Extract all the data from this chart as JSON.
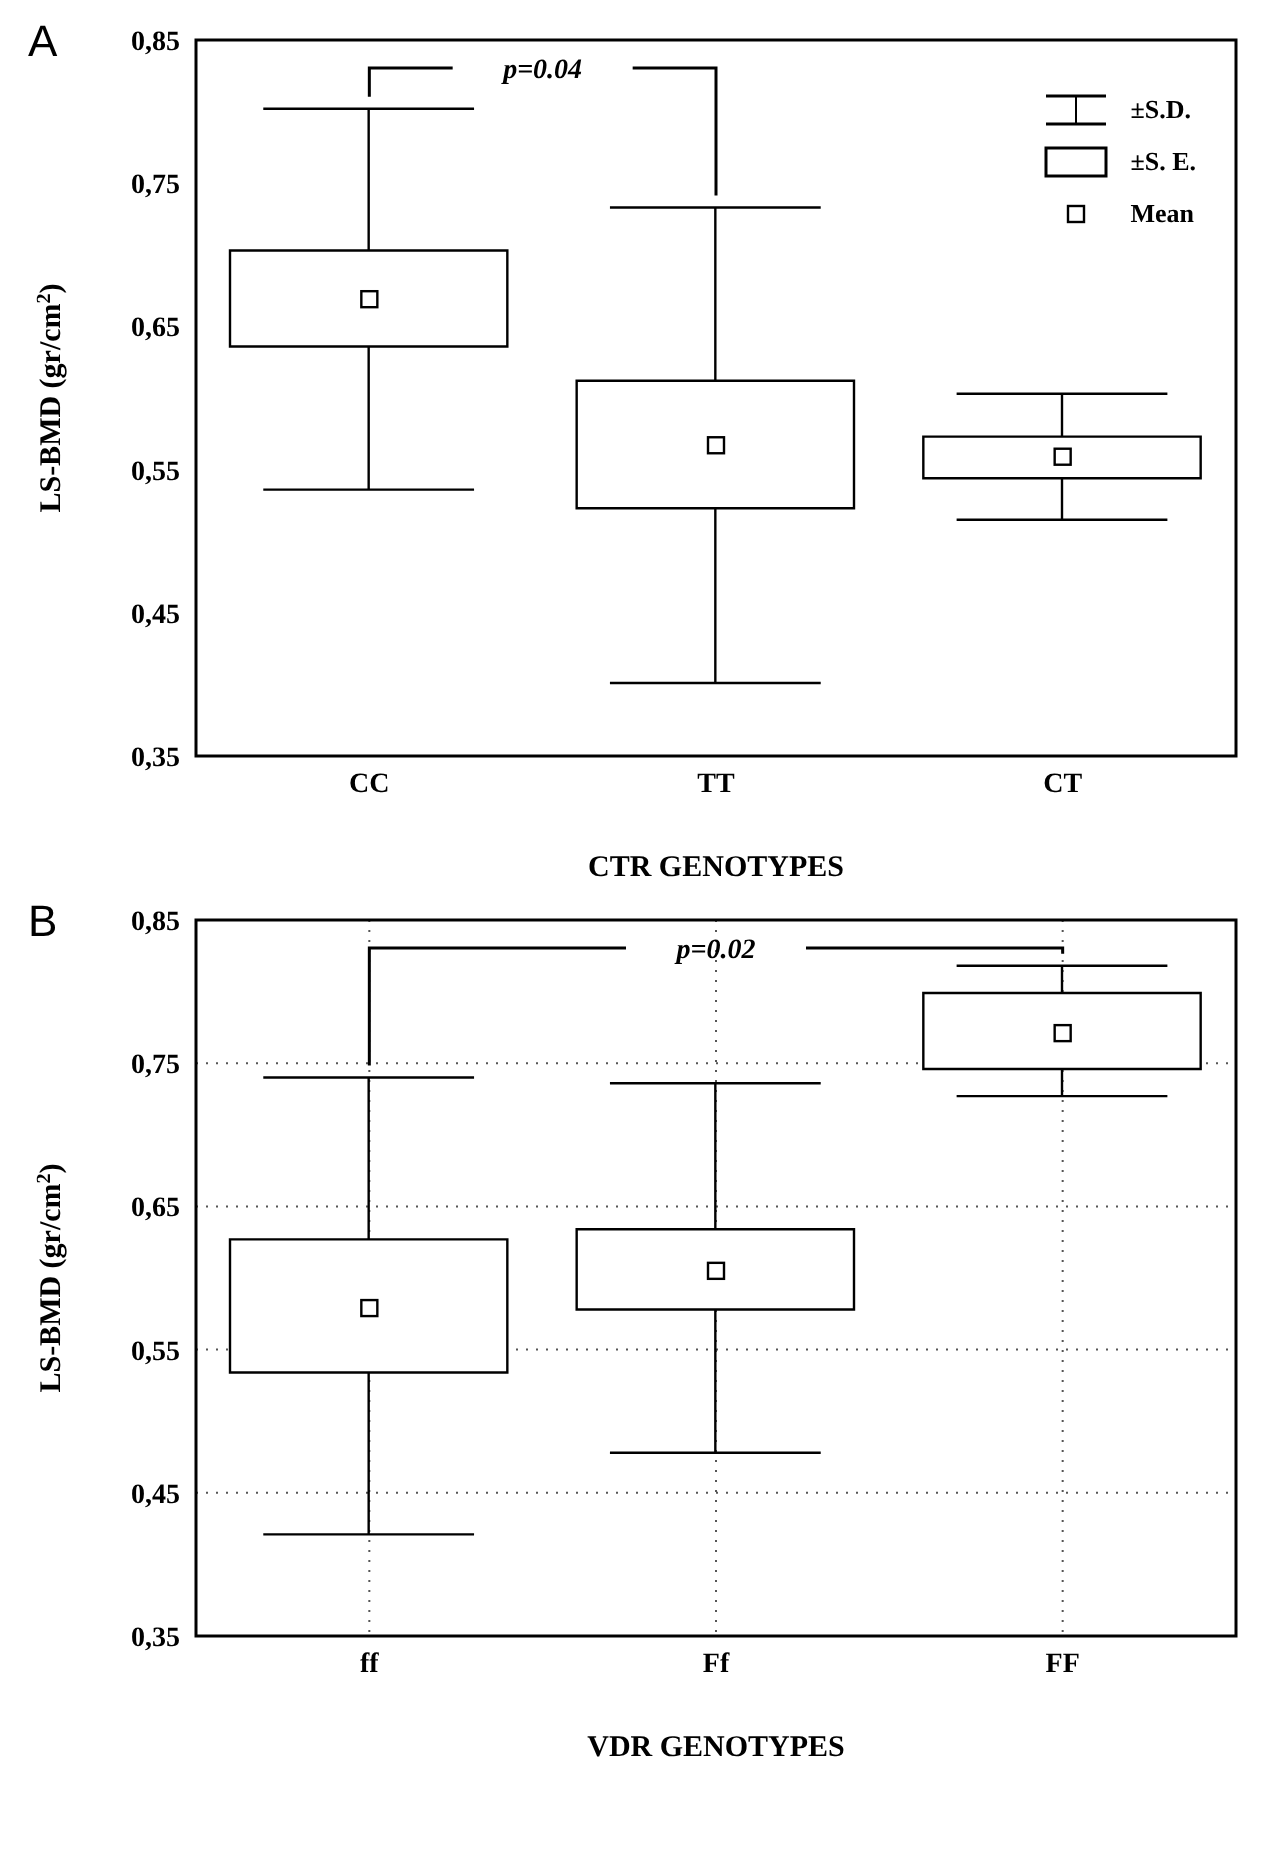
{
  "chart_data": [
    {
      "type": "box",
      "title": "A",
      "xlabel": "CTR GENOTYPES",
      "ylabel": "LS-BMD (gr/cm$^{2}$)",
      "categories": [
        "CC",
        "TT",
        "CT"
      ],
      "boxes": [
        {
          "low": 0.536,
          "q1": 0.636,
          "q3": 0.703,
          "high": 0.802,
          "mean": 0.669
        },
        {
          "low": 0.401,
          "q1": 0.523,
          "q3": 0.612,
          "high": 0.733,
          "mean": 0.567
        },
        {
          "low": 0.515,
          "q1": 0.544,
          "q3": 0.573,
          "high": 0.603,
          "mean": 0.559
        }
      ],
      "ylim": [
        0.35,
        0.85
      ],
      "yticks": [
        {
          "value": 0.35,
          "label": "0,35"
        },
        {
          "value": 0.45,
          "label": "0,45"
        },
        {
          "value": 0.55,
          "label": "0,55"
        },
        {
          "value": 0.65,
          "label": "0,65"
        },
        {
          "value": 0.75,
          "label": "0,75"
        },
        {
          "value": 0.85,
          "label": "0,85"
        }
      ],
      "annotations": [
        "p=0.04",
        "±S.D.",
        "±S. E.",
        "Mean"
      ],
      "grid": false
    },
    {
      "type": "box",
      "title": "B",
      "xlabel": "VDR GENOTYPES",
      "ylabel": "LS-BMD (gr/cm$^{2}$)",
      "categories": [
        "ff",
        "Ff",
        "FF"
      ],
      "boxes": [
        {
          "low": 0.421,
          "q1": 0.534,
          "q3": 0.627,
          "high": 0.74,
          "mean": 0.579
        },
        {
          "low": 0.478,
          "q1": 0.578,
          "q3": 0.634,
          "high": 0.736,
          "mean": 0.605
        },
        {
          "low": 0.727,
          "q1": 0.746,
          "q3": 0.799,
          "high": 0.818,
          "mean": 0.771
        }
      ],
      "ylim": [
        0.35,
        0.85
      ],
      "yticks": [
        {
          "value": 0.35,
          "label": "0,35"
        },
        {
          "value": 0.45,
          "label": "0,45"
        },
        {
          "value": 0.55,
          "label": "0,55"
        },
        {
          "value": 0.65,
          "label": "0,65"
        },
        {
          "value": 0.75,
          "label": "0,75"
        },
        {
          "value": 0.85,
          "label": "0,85"
        }
      ],
      "annotations": [
        "p=0.02"
      ],
      "grid": true
    }
  ]
}
